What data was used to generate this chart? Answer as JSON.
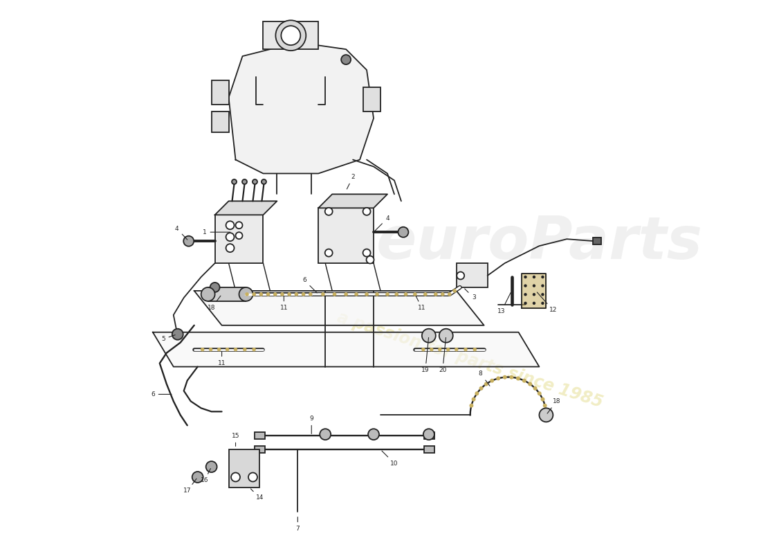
{
  "background_color": "#ffffff",
  "line_color": "#222222",
  "line_width": 1.3,
  "hose_dot_color": "#c8b060",
  "watermark1_color": "#cccccc",
  "watermark2_color": "#d4c84a",
  "fig_width": 11.0,
  "fig_height": 8.0
}
